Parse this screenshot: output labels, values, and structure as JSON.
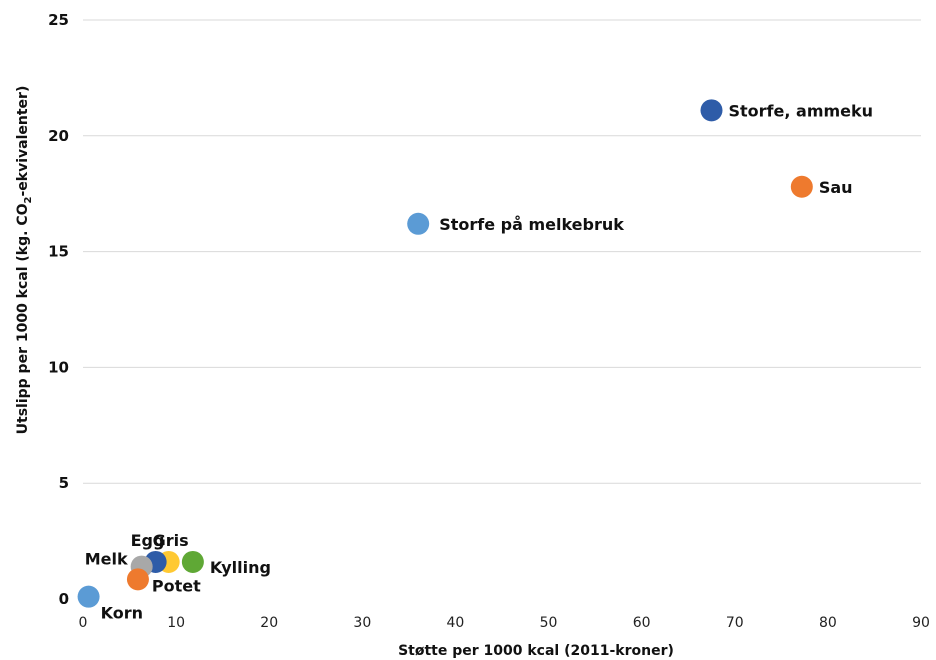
{
  "chart_data": {
    "type": "scatter",
    "xlabel": "Støtte per 1000 kcal (2011-kroner)",
    "ylabel_parts": [
      "Utslipp per 1000 kcal (kg. CO",
      "2",
      "-ekvivalenter)"
    ],
    "xlim": [
      0,
      90
    ],
    "ylim": [
      0,
      25
    ],
    "x_ticks": [
      "0",
      "10",
      "20",
      "30",
      "40",
      "50",
      "60",
      "70",
      "80",
      "90"
    ],
    "y_ticks": [
      "0",
      "5",
      "10",
      "15",
      "20",
      "25"
    ],
    "grid": "horizontal",
    "points": [
      {
        "label": "Storfe, ammeku",
        "x": 67.5,
        "y": 21.1,
        "color": "#2e5ca8"
      },
      {
        "label": "Sau",
        "x": 77.2,
        "y": 17.8,
        "color": "#ee7a2e"
      },
      {
        "label": "Storfe på melkebruk",
        "x": 36.0,
        "y": 16.2,
        "color": "#5b9bd5"
      },
      {
        "label": "Kylling",
        "x": 11.8,
        "y": 1.6,
        "color": "#5fa835"
      },
      {
        "label": "Gris",
        "x": 9.2,
        "y": 1.6,
        "color": "#ffc933"
      },
      {
        "label": "Egg",
        "x": 7.8,
        "y": 1.6,
        "color": "#2e5ca8"
      },
      {
        "label": "Melk",
        "x": 6.3,
        "y": 1.4,
        "color": "#a8a8a8"
      },
      {
        "label": "Potet",
        "x": 5.9,
        "y": 0.85,
        "color": "#ee7a2e"
      },
      {
        "label": "Korn",
        "x": 0.6,
        "y": 0.1,
        "color": "#5b9bd5"
      }
    ]
  }
}
